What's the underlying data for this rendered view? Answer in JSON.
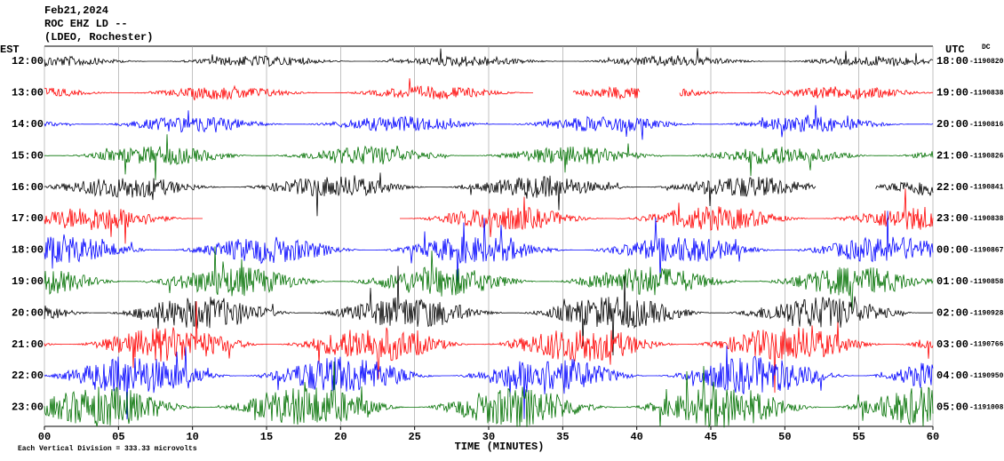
{
  "header": [
    "Feb21,2024",
    "ROC EHZ LD --",
    "(LDEO, Rochester)"
  ],
  "left_zone": "EST",
  "right_zone": "UTC",
  "dc": "DC",
  "rows": [
    {
      "est": "12:00",
      "utc": "18:00",
      "dc": "-1190820",
      "color": "#000000"
    },
    {
      "est": "13:00",
      "utc": "19:00",
      "dc": "-1190838",
      "color": "#ff0000"
    },
    {
      "est": "14:00",
      "utc": "20:00",
      "dc": "-1190816",
      "color": "#0000ff"
    },
    {
      "est": "15:00",
      "utc": "21:00",
      "dc": "-1190826",
      "color": "#007000"
    },
    {
      "est": "16:00",
      "utc": "22:00",
      "dc": "-1190841",
      "color": "#000000"
    },
    {
      "est": "17:00",
      "utc": "23:00",
      "dc": "-1190838",
      "color": "#ff0000"
    },
    {
      "est": "18:00",
      "utc": "00:00",
      "dc": "-1190867",
      "color": "#0000ff"
    },
    {
      "est": "19:00",
      "utc": "01:00",
      "dc": "-1190858",
      "color": "#007000"
    },
    {
      "est": "20:00",
      "utc": "02:00",
      "dc": "-1190928",
      "color": "#000000"
    },
    {
      "est": "21:00",
      "utc": "03:00",
      "dc": "-1190766",
      "color": "#ff0000"
    },
    {
      "est": "22:00",
      "utc": "04:00",
      "dc": "-1190950",
      "color": "#0000ff"
    },
    {
      "est": "23:00",
      "utc": "05:00",
      "dc": "-1191008",
      "color": "#007000"
    }
  ],
  "x_labels": [
    "00",
    "05",
    "10",
    "15",
    "20",
    "25",
    "30",
    "35",
    "40",
    "45",
    "50",
    "55",
    "60"
  ],
  "x_title": "TIME (MINUTES)",
  "footer": "Each Vertical Division = 333.33 microvolts"
}
